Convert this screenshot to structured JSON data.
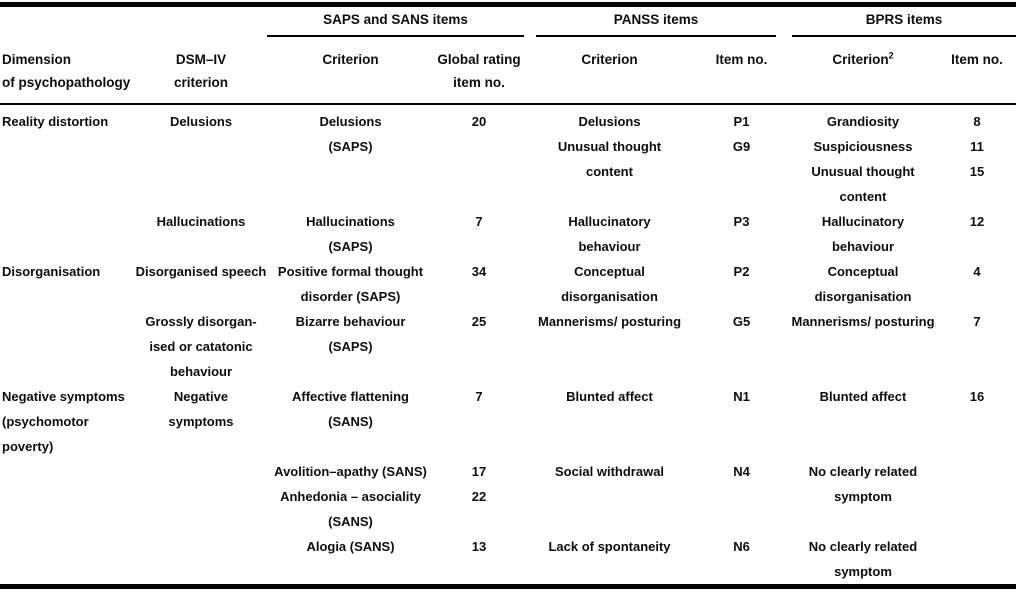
{
  "colors": {
    "text": "#0d0d0d",
    "rule": "#000000",
    "background": "#ffffff"
  },
  "table": {
    "col_groups": [
      {
        "label": "SAPS and SANS items"
      },
      {
        "label": "PANSS items"
      },
      {
        "label": "BPRS items"
      }
    ],
    "headers": [
      {
        "lines": [
          "Dimension",
          "of psychopathology"
        ]
      },
      {
        "lines": [
          "DSM–IV",
          "criterion"
        ]
      },
      {
        "lines": [
          "Criterion"
        ]
      },
      {
        "lines": [
          "Global rating",
          "item no."
        ]
      },
      {
        "lines": [
          "Criterion"
        ]
      },
      {
        "lines": [
          "Item no."
        ]
      },
      {
        "lines": [
          "Criterion"
        ],
        "sup": "2"
      },
      {
        "lines": [
          "Item no."
        ]
      }
    ],
    "lines": [
      [
        "Reality distortion",
        "Delusions",
        "Delusions",
        "20",
        "Delusions",
        "P1",
        "Grandiosity",
        "8"
      ],
      [
        "",
        "",
        "(SAPS)",
        "",
        "Unusual thought",
        "G9",
        "Suspiciousness",
        "11"
      ],
      [
        "",
        "",
        "",
        "",
        "content",
        "",
        "Unusual thought",
        "15"
      ],
      [
        "",
        "",
        "",
        "",
        "",
        "",
        "content",
        ""
      ],
      [
        "",
        "Hallucinations",
        "Hallucinations",
        "7",
        "Hallucinatory",
        "P3",
        "Hallucinatory",
        "12"
      ],
      [
        "",
        "",
        "(SAPS)",
        "",
        "behaviour",
        "",
        "behaviour",
        ""
      ],
      [
        "Disorganisation",
        "Disorganised speech",
        "Positive formal thought",
        "34",
        "Conceptual",
        "P2",
        "Conceptual",
        "4"
      ],
      [
        "",
        "",
        "disorder (SAPS)",
        "",
        "disorganisation",
        "",
        "disorganisation",
        ""
      ],
      [
        "",
        "Grossly disorgan-",
        "Bizarre behaviour",
        "25",
        "Mannerisms/ posturing",
        "G5",
        "Mannerisms/ posturing",
        "7"
      ],
      [
        "",
        "ised or catatonic",
        "(SAPS)",
        "",
        "",
        "",
        "",
        ""
      ],
      [
        "",
        "behaviour",
        "",
        "",
        "",
        "",
        "",
        ""
      ],
      [
        "Negative symptoms",
        "Negative",
        "Affective flattening",
        "7",
        "Blunted affect",
        "N1",
        "Blunted affect",
        "16"
      ],
      [
        "(psychomotor",
        "symptoms",
        "(SANS)",
        "",
        "",
        "",
        "",
        ""
      ],
      [
        "poverty)",
        "",
        "",
        "",
        "",
        "",
        "",
        ""
      ],
      [
        "",
        "",
        "Avolition–apathy (SANS)",
        "17",
        "Social withdrawal",
        "N4",
        "No clearly related",
        ""
      ],
      [
        "",
        "",
        "Anhedonia – asociality",
        "22",
        "",
        "",
        "symptom",
        ""
      ],
      [
        "",
        "",
        "(SANS)",
        "",
        "",
        "",
        "",
        ""
      ],
      [
        "",
        "",
        "Alogia (SANS)",
        "13",
        "Lack of spontaneity",
        "N6",
        "No clearly related",
        ""
      ],
      [
        "",
        "",
        "",
        "",
        "",
        "",
        "symptom",
        ""
      ]
    ]
  }
}
